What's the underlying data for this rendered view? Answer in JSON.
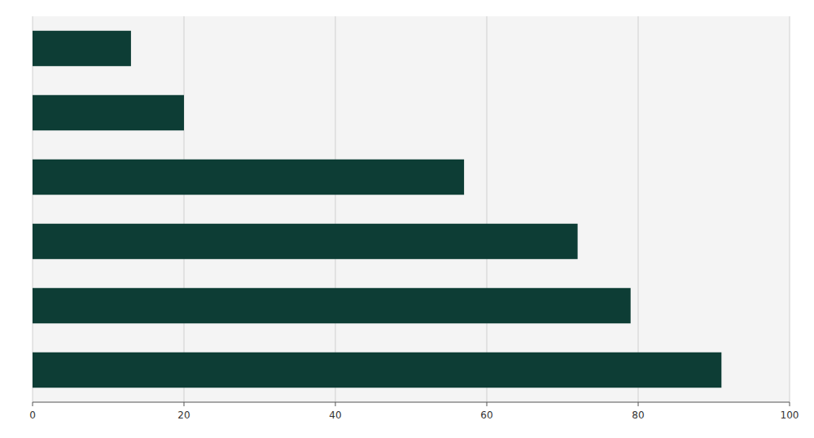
{
  "chart_data": {
    "type": "bar",
    "orientation": "horizontal",
    "categories": [
      null,
      null,
      null,
      null,
      null,
      null
    ],
    "values": [
      13,
      20,
      57,
      72,
      79,
      91
    ],
    "color": "#0d3d35",
    "xlim": [
      0,
      100
    ],
    "xticks": [
      0,
      20,
      40,
      60,
      80,
      100
    ],
    "grid": true,
    "tick_labels": "x"
  }
}
